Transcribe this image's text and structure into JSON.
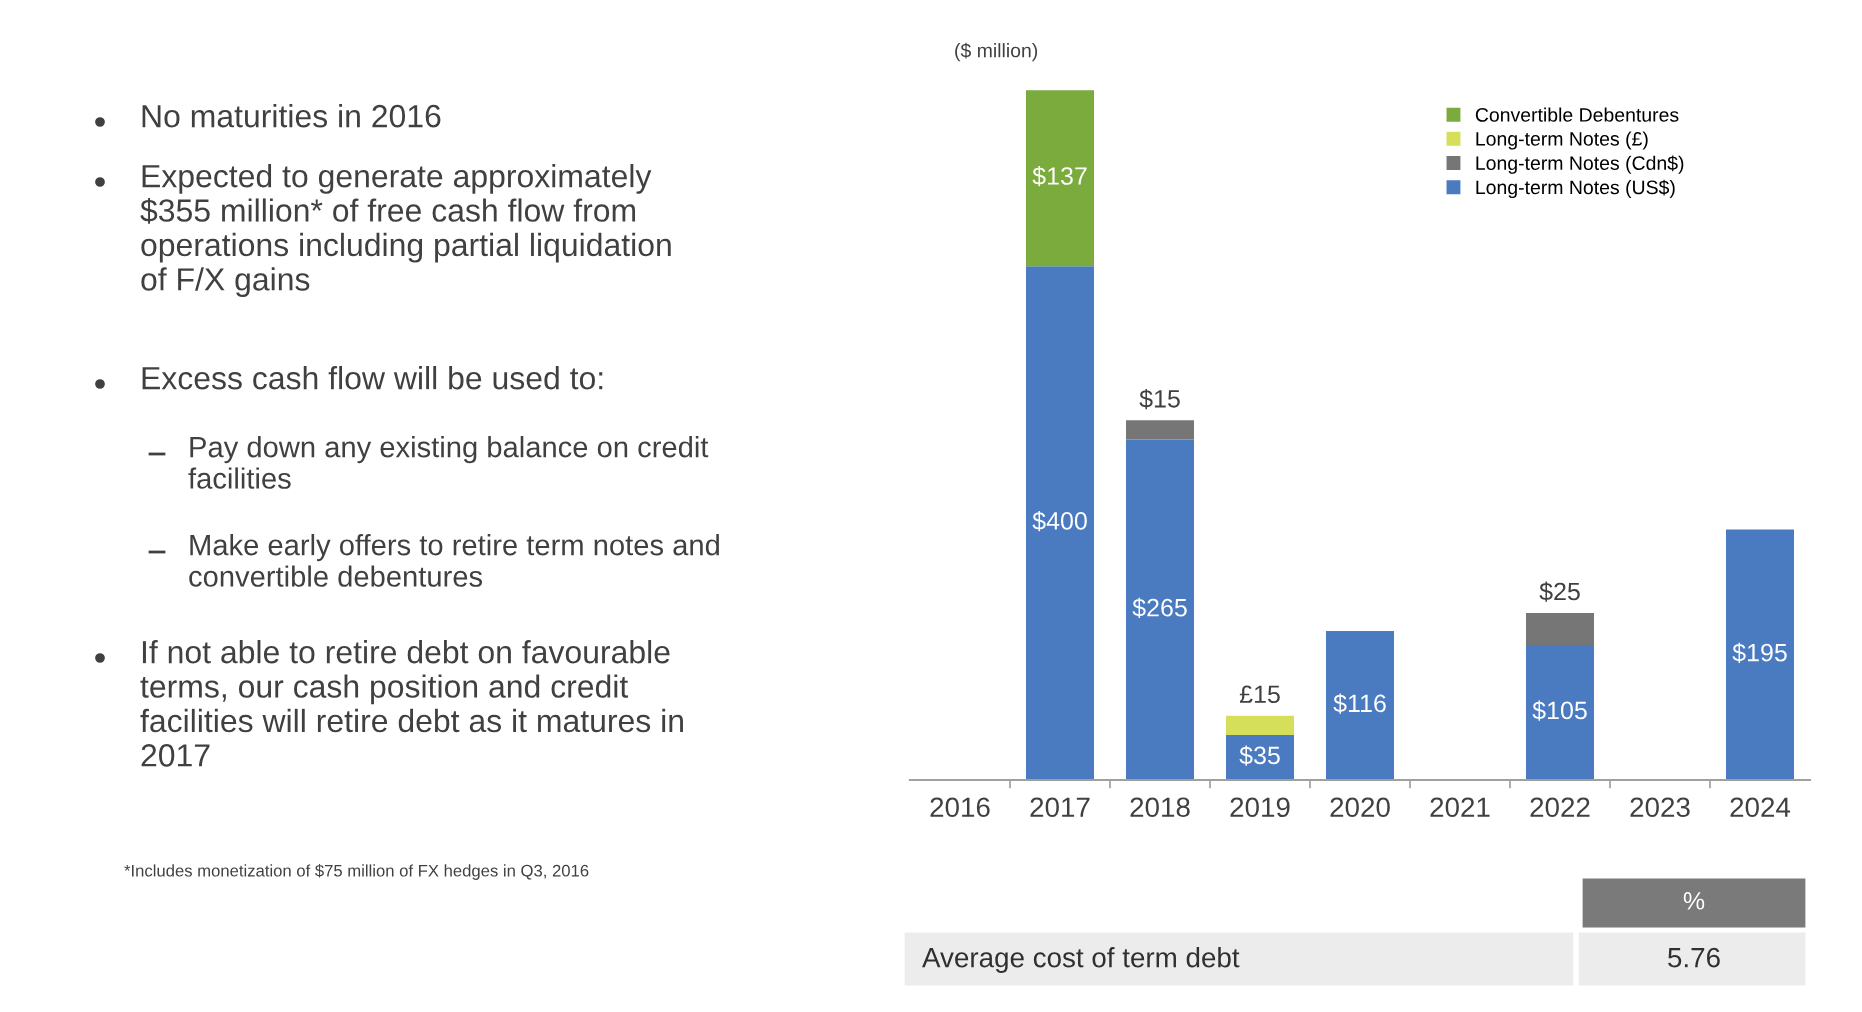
{
  "chart_data": {
    "type": "bar",
    "stacked": true,
    "categories": [
      "2016",
      "2017",
      "2018",
      "2019",
      "2020",
      "2021",
      "2022",
      "2023",
      "2024"
    ],
    "series": [
      {
        "name": "Long-term Notes (US$)",
        "color": "#4a7bc0",
        "values": [
          null,
          400,
          265,
          35,
          116,
          null,
          105,
          null,
          195
        ],
        "value_labels": [
          null,
          "$400",
          "$265",
          "$35",
          "$116",
          null,
          "$105",
          null,
          "$195"
        ]
      },
      {
        "name": "Long-term Notes (Cdn$)",
        "color": "#767676",
        "values": [
          null,
          null,
          15,
          null,
          null,
          null,
          25,
          null,
          null
        ],
        "value_labels": [
          null,
          null,
          "$15",
          null,
          null,
          null,
          "$25",
          null,
          null
        ]
      },
      {
        "name": "Long-term Notes (£)",
        "color": "#d6df5a",
        "values": [
          null,
          null,
          null,
          15,
          null,
          null,
          null,
          null,
          null
        ],
        "value_labels": [
          null,
          null,
          null,
          "£15",
          null,
          null,
          null,
          null,
          null
        ]
      },
      {
        "name": "Convertible Debentures",
        "color": "#7aab3c",
        "values": [
          null,
          137,
          null,
          null,
          null,
          null,
          null,
          null,
          null
        ],
        "value_labels": [
          null,
          "$137",
          null,
          null,
          null,
          null,
          null,
          null,
          null
        ]
      }
    ],
    "legend": "top right",
    "grid": false,
    "tick_labels": "x",
    "annotations": [
      "($ million)",
      "No maturities in 2016",
      "Expected to generate approximately\n$355 million* of free cash flow from\noperations including partial liquidation\nof F/X gains",
      "Excess cash flow will be used to:",
      "Pay down any existing balance on credit\nfacilities",
      "Make early offers to retire term notes and\nconvertible debentures",
      "If not able to retire debt on favourable\nterms, our cash position and credit\nfacilities will retire debt as it matures in\n2017",
      "*Includes monetization of $75 million of FX hedges in Q3, 2016",
      "%",
      "Average cost of term debt",
      "5.76"
    ]
  }
}
